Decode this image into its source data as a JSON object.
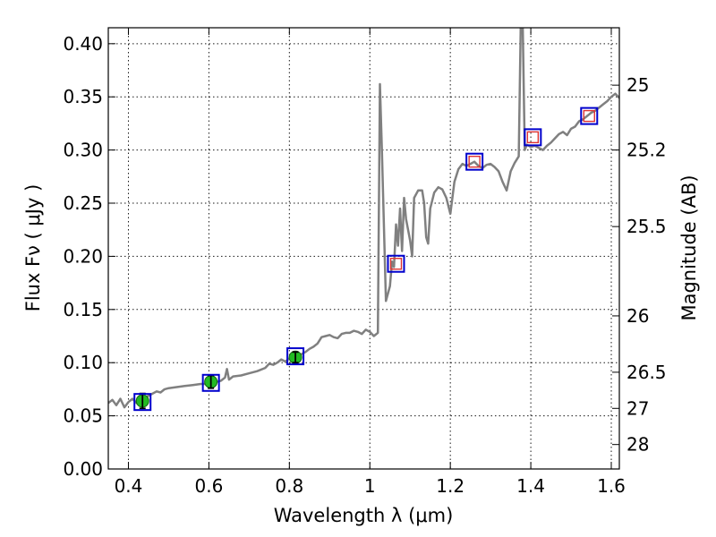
{
  "chart_data": {
    "type": "line",
    "xlabel": "Wavelength  λ (μm)",
    "ylabel": "Flux  Fν  ( μJy )",
    "y2label": "Magnitude (AB)",
    "xlim": [
      0.35,
      1.62
    ],
    "ylim": [
      0.0,
      0.415
    ],
    "grid": true,
    "x_ticks": [
      {
        "v": 0.4,
        "label": "0.4"
      },
      {
        "v": 0.6,
        "label": "0.6"
      },
      {
        "v": 0.8,
        "label": "0.8"
      },
      {
        "v": 1.0,
        "label": "1"
      },
      {
        "v": 1.2,
        "label": "1.2"
      },
      {
        "v": 1.4,
        "label": "1.4"
      },
      {
        "v": 1.6,
        "label": "1.6"
      }
    ],
    "y_ticks": [
      {
        "v": 0.0,
        "label": "0.00"
      },
      {
        "v": 0.05,
        "label": "0.05"
      },
      {
        "v": 0.1,
        "label": "0.10"
      },
      {
        "v": 0.15,
        "label": "0.15"
      },
      {
        "v": 0.2,
        "label": "0.20"
      },
      {
        "v": 0.25,
        "label": "0.25"
      },
      {
        "v": 0.3,
        "label": "0.30"
      },
      {
        "v": 0.35,
        "label": "0.35"
      },
      {
        "v": 0.4,
        "label": "0.40"
      }
    ],
    "y2_ticks": [
      {
        "flux": 0.361,
        "label": "25"
      },
      {
        "flux": 0.3,
        "label": "25.2"
      },
      {
        "flux": 0.228,
        "label": "25.5"
      },
      {
        "flux": 0.144,
        "label": "26"
      },
      {
        "flux": 0.091,
        "label": "26.5"
      },
      {
        "flux": 0.057,
        "label": "27"
      },
      {
        "flux": 0.023,
        "label": "28"
      }
    ],
    "series": [
      {
        "type": "line",
        "color": "#808080",
        "points": [
          [
            0.35,
            0.062
          ],
          [
            0.36,
            0.065
          ],
          [
            0.37,
            0.06
          ],
          [
            0.38,
            0.066
          ],
          [
            0.39,
            0.058
          ],
          [
            0.4,
            0.063
          ],
          [
            0.41,
            0.066
          ],
          [
            0.42,
            0.062
          ],
          [
            0.43,
            0.064
          ],
          [
            0.44,
            0.066
          ],
          [
            0.45,
            0.069
          ],
          [
            0.46,
            0.071
          ],
          [
            0.47,
            0.073
          ],
          [
            0.48,
            0.072
          ],
          [
            0.49,
            0.075
          ],
          [
            0.5,
            0.076
          ],
          [
            0.52,
            0.077
          ],
          [
            0.54,
            0.078
          ],
          [
            0.56,
            0.079
          ],
          [
            0.58,
            0.08
          ],
          [
            0.6,
            0.08
          ],
          [
            0.62,
            0.082
          ],
          [
            0.63,
            0.083
          ],
          [
            0.64,
            0.086
          ],
          [
            0.645,
            0.094
          ],
          [
            0.65,
            0.084
          ],
          [
            0.66,
            0.087
          ],
          [
            0.68,
            0.088
          ],
          [
            0.7,
            0.09
          ],
          [
            0.72,
            0.092
          ],
          [
            0.74,
            0.095
          ],
          [
            0.75,
            0.099
          ],
          [
            0.76,
            0.098
          ],
          [
            0.77,
            0.1
          ],
          [
            0.78,
            0.103
          ],
          [
            0.79,
            0.101
          ],
          [
            0.8,
            0.104
          ],
          [
            0.81,
            0.103
          ],
          [
            0.82,
            0.105
          ],
          [
            0.83,
            0.108
          ],
          [
            0.84,
            0.11
          ],
          [
            0.85,
            0.113
          ],
          [
            0.86,
            0.115
          ],
          [
            0.87,
            0.118
          ],
          [
            0.88,
            0.124
          ],
          [
            0.89,
            0.125
          ],
          [
            0.9,
            0.126
          ],
          [
            0.91,
            0.124
          ],
          [
            0.92,
            0.123
          ],
          [
            0.93,
            0.127
          ],
          [
            0.94,
            0.128
          ],
          [
            0.95,
            0.128
          ],
          [
            0.96,
            0.13
          ],
          [
            0.97,
            0.129
          ],
          [
            0.98,
            0.127
          ],
          [
            0.99,
            0.131
          ],
          [
            1.0,
            0.129
          ],
          [
            1.01,
            0.125
          ],
          [
            1.02,
            0.128
          ],
          [
            1.025,
            0.362
          ],
          [
            1.03,
            0.3
          ],
          [
            1.04,
            0.158
          ],
          [
            1.05,
            0.172
          ],
          [
            1.055,
            0.195
          ],
          [
            1.06,
            0.19
          ],
          [
            1.065,
            0.23
          ],
          [
            1.07,
            0.21
          ],
          [
            1.075,
            0.245
          ],
          [
            1.08,
            0.205
          ],
          [
            1.085,
            0.255
          ],
          [
            1.09,
            0.235
          ],
          [
            1.1,
            0.215
          ],
          [
            1.105,
            0.2
          ],
          [
            1.11,
            0.255
          ],
          [
            1.12,
            0.262
          ],
          [
            1.13,
            0.262
          ],
          [
            1.135,
            0.25
          ],
          [
            1.14,
            0.218
          ],
          [
            1.145,
            0.212
          ],
          [
            1.15,
            0.245
          ],
          [
            1.16,
            0.26
          ],
          [
            1.17,
            0.265
          ],
          [
            1.18,
            0.263
          ],
          [
            1.19,
            0.255
          ],
          [
            1.2,
            0.24
          ],
          [
            1.21,
            0.27
          ],
          [
            1.22,
            0.282
          ],
          [
            1.23,
            0.287
          ],
          [
            1.24,
            0.285
          ],
          [
            1.25,
            0.287
          ],
          [
            1.26,
            0.289
          ],
          [
            1.27,
            0.285
          ],
          [
            1.28,
            0.283
          ],
          [
            1.29,
            0.286
          ],
          [
            1.3,
            0.287
          ],
          [
            1.31,
            0.284
          ],
          [
            1.32,
            0.28
          ],
          [
            1.33,
            0.27
          ],
          [
            1.34,
            0.262
          ],
          [
            1.35,
            0.28
          ],
          [
            1.36,
            0.288
          ],
          [
            1.37,
            0.294
          ],
          [
            1.375,
            0.415
          ],
          [
            1.38,
            0.415
          ],
          [
            1.385,
            0.3
          ],
          [
            1.39,
            0.305
          ],
          [
            1.4,
            0.303
          ],
          [
            1.41,
            0.304
          ],
          [
            1.42,
            0.302
          ],
          [
            1.43,
            0.3
          ],
          [
            1.44,
            0.304
          ],
          [
            1.45,
            0.307
          ],
          [
            1.46,
            0.311
          ],
          [
            1.47,
            0.315
          ],
          [
            1.48,
            0.317
          ],
          [
            1.49,
            0.314
          ],
          [
            1.5,
            0.32
          ],
          [
            1.51,
            0.322
          ],
          [
            1.52,
            0.327
          ],
          [
            1.53,
            0.329
          ],
          [
            1.54,
            0.332
          ],
          [
            1.55,
            0.335
          ],
          [
            1.56,
            0.337
          ],
          [
            1.57,
            0.34
          ],
          [
            1.58,
            0.343
          ],
          [
            1.59,
            0.346
          ],
          [
            1.6,
            0.35
          ],
          [
            1.61,
            0.353
          ],
          [
            1.62,
            0.349
          ]
        ]
      },
      {
        "type": "model_boxes",
        "color": "#0000cc",
        "points": [
          [
            0.435,
            0.063
          ],
          [
            0.605,
            0.081
          ],
          [
            0.815,
            0.106
          ],
          [
            1.065,
            0.193
          ],
          [
            1.26,
            0.289
          ],
          [
            1.405,
            0.312
          ],
          [
            1.545,
            0.332
          ]
        ]
      },
      {
        "type": "observed_points",
        "color": "#22bb22",
        "points": [
          [
            0.435,
            0.064,
            0.007
          ],
          [
            0.605,
            0.082,
            0.006
          ],
          [
            0.815,
            0.105,
            0.005
          ]
        ]
      },
      {
        "type": "nir_points",
        "color": "#dd3333",
        "points": [
          [
            1.065,
            0.193
          ],
          [
            1.26,
            0.289
          ],
          [
            1.405,
            0.312
          ],
          [
            1.545,
            0.332
          ]
        ]
      }
    ]
  }
}
